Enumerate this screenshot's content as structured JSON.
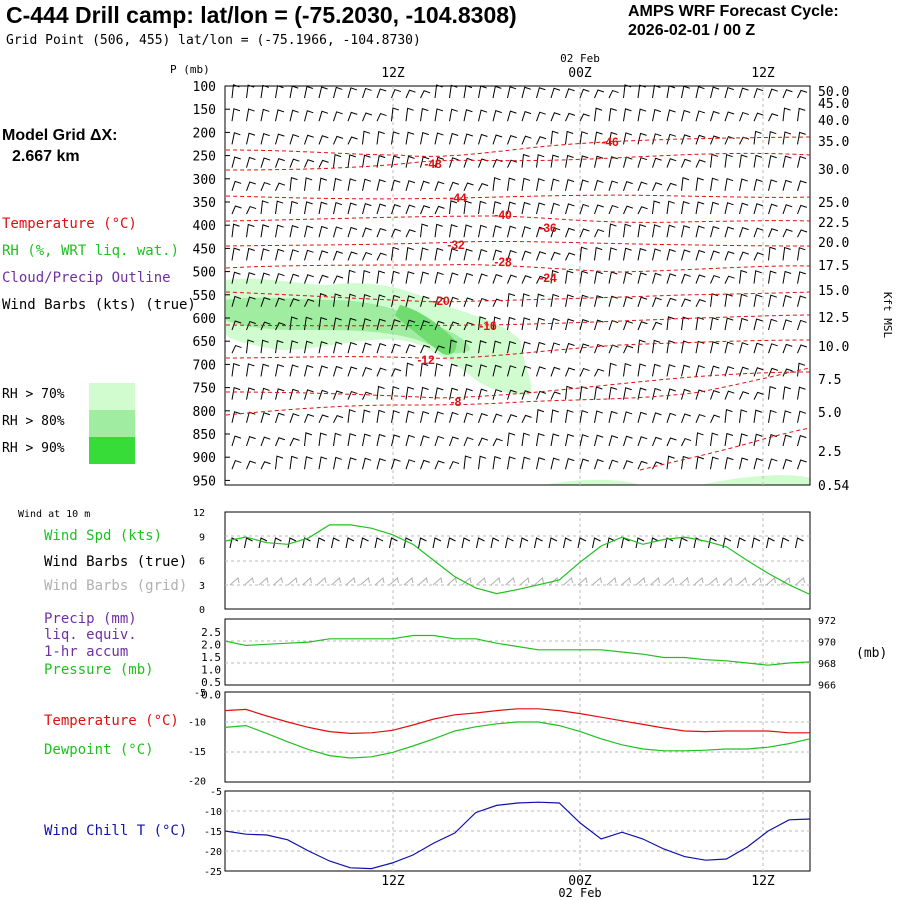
{
  "header": {
    "title": "C-444 Drill camp:  lat/lon = (-75.2030, -104.8308)",
    "subtitle": "Grid Point (506, 455) lat/lon = (-75.1966, -104.8730)",
    "cycle_label": "AMPS WRF Forecast Cycle:",
    "cycle_value": "2026-02-01 / 00  Z"
  },
  "model_grid": {
    "label": "Model Grid ΔX:",
    "value": "2.667 km"
  },
  "legend_upper": {
    "temperature": "Temperature (°C)",
    "rh": "RH (%, WRT liq. wat.)",
    "cloud": "Cloud/Precip Outline",
    "wind": "Wind Barbs (kts) (true)"
  },
  "rh_legend": [
    {
      "label": "RH > 70%",
      "color": "#d0fcd0"
    },
    {
      "label": "RH > 80%",
      "color": "#a0eca0"
    },
    {
      "label": "RH > 90%",
      "color": "#38dc38"
    }
  ],
  "wind_legend": {
    "title": "Wind at 10 m",
    "spd": "Wind Spd (kts)",
    "barbs_true": "Wind Barbs (true)",
    "barbs_grid": "Wind Barbs (grid)"
  },
  "precip_legend": {
    "precip": "Precip (mm)",
    "liq": "liq. equiv.",
    "accum": "1-hr accum",
    "pressure": "Pressure (mb)"
  },
  "temp_legend": {
    "temperature": "Temperature (°C)",
    "dewpoint": "Dewpoint (°C)"
  },
  "chill_legend": {
    "windchill": "Wind Chill T (°C)"
  },
  "colors": {
    "temp": "#e01010",
    "rh": "#20c020",
    "cloud": "#7030a0",
    "chill": "#1010b0",
    "grid_barb": "#b0b0b0"
  },
  "chart_data": [
    {
      "type": "heatmap",
      "ylabel_left": "P (mb)",
      "ylabel_right": "Kft MSL",
      "x_ticks": [
        "12Z",
        "00Z",
        "12Z"
      ],
      "date_label": "02 Feb",
      "pressure_levels": [
        "100",
        "150",
        "200",
        "250",
        "300",
        "350",
        "400",
        "450",
        "500",
        "550",
        "600",
        "650",
        "700",
        "750",
        "800",
        "850",
        "900",
        "950"
      ],
      "height_ticks": [
        "50.0",
        "45.0",
        "40.0",
        "35.0",
        "30.0",
        "25.0",
        "22.5",
        "20.0",
        "17.5",
        "15.0",
        "12.5",
        "10.0",
        "7.5",
        "5.0",
        "2.5",
        "0.54"
      ],
      "temperature_labels": [
        "-46",
        "-48",
        "-44",
        "-40",
        "-36",
        "-32",
        "-28",
        "-24",
        "-20",
        "-16",
        "-12",
        "-8"
      ]
    },
    {
      "type": "line",
      "title": "Wind at 10 m",
      "y_ticks": [
        "12",
        "9",
        "6",
        "3",
        "0"
      ],
      "ylim": [
        0,
        12
      ],
      "series": [
        {
          "name": "Wind Spd (kts)",
          "values": [
            8.4,
            8.9,
            8.2,
            8.0,
            8.8,
            10.4,
            10.4,
            10.0,
            9.2,
            8.0,
            6.0,
            4.0,
            2.6,
            1.9,
            2.4,
            3.0,
            3.6,
            5.8,
            7.8,
            8.9,
            8.0,
            8.6,
            8.9,
            8.4,
            7.7,
            6.0,
            4.4,
            3.0,
            1.8
          ]
        }
      ]
    },
    {
      "type": "line",
      "y_ticks_left": [
        "2.5",
        "2.0",
        "1.5",
        "1.0",
        "0.5",
        "0.0"
      ],
      "y_ticks_right": [
        "972",
        "970",
        "968",
        "966"
      ],
      "unit_right": "(mb)",
      "ylim": [
        966,
        972
      ],
      "series": [
        {
          "name": "Pressure (mb)",
          "values": [
            970.0,
            969.6,
            969.7,
            969.8,
            969.9,
            970.2,
            970.2,
            970.2,
            970.2,
            970.5,
            970.5,
            970.2,
            970.2,
            969.8,
            969.5,
            969.2,
            969.2,
            969.2,
            969.2,
            969.0,
            968.8,
            968.5,
            968.5,
            968.3,
            968.2,
            968.0,
            967.8,
            968.0,
            968.1
          ]
        }
      ]
    },
    {
      "type": "line",
      "y_ticks": [
        "-5",
        "-10",
        "-15",
        "-20"
      ],
      "ylim": [
        -20,
        -5
      ],
      "series": [
        {
          "name": "Temperature (°C)",
          "values": [
            -8.1,
            -7.9,
            -9.0,
            -10.0,
            -10.9,
            -11.6,
            -11.9,
            -11.8,
            -11.4,
            -10.5,
            -9.5,
            -8.8,
            -8.5,
            -8.1,
            -7.8,
            -7.8,
            -8.1,
            -8.6,
            -9.2,
            -9.8,
            -10.4,
            -11.0,
            -11.5,
            -11.6,
            -11.5,
            -11.5,
            -11.5,
            -11.8,
            -11.8
          ]
        },
        {
          "name": "Dewpoint (°C)",
          "values": [
            -10.9,
            -10.6,
            -11.9,
            -13.3,
            -14.6,
            -15.6,
            -16.0,
            -15.8,
            -15.1,
            -14.0,
            -12.8,
            -11.5,
            -10.8,
            -10.3,
            -10.0,
            -10.0,
            -10.6,
            -11.6,
            -12.8,
            -13.8,
            -14.5,
            -14.8,
            -14.8,
            -14.7,
            -14.5,
            -14.5,
            -14.2,
            -13.6,
            -12.8
          ]
        }
      ]
    },
    {
      "type": "line",
      "y_ticks": [
        "-5",
        "-10",
        "-15",
        "-20",
        "-25"
      ],
      "ylim": [
        -25,
        -5
      ],
      "x_ticks": [
        "12Z",
        "00Z",
        "12Z"
      ],
      "date_label": "02 Feb",
      "series": [
        {
          "name": "Wind Chill T (°C)",
          "values": [
            -15.0,
            -15.8,
            -16.0,
            -17.2,
            -20.0,
            -22.5,
            -24.2,
            -24.4,
            -23.0,
            -21.0,
            -18.0,
            -15.5,
            -10.4,
            -8.6,
            -8.0,
            -7.8,
            -8.0,
            -13.0,
            -17.0,
            -15.3,
            -17.0,
            -19.5,
            -21.4,
            -22.3,
            -22.0,
            -19.0,
            -15.0,
            -12.2,
            -12.0
          ]
        }
      ]
    }
  ]
}
